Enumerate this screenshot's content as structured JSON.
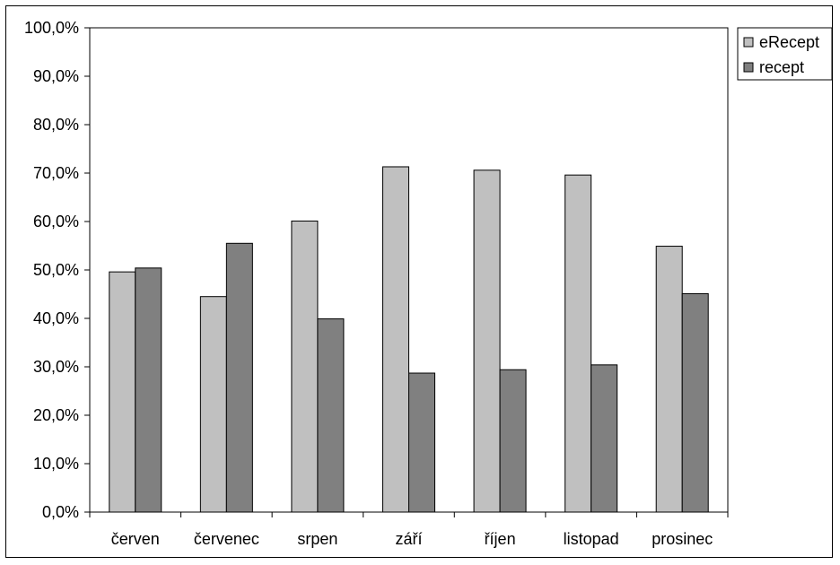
{
  "chart_data": {
    "type": "bar",
    "categories": [
      "červen",
      "červenec",
      "srpen",
      "září",
      "říjen",
      "listopad",
      "prosinec"
    ],
    "series": [
      {
        "name": "eRecept",
        "color": "#c0c0c0",
        "values": [
          49.6,
          44.5,
          60.1,
          71.3,
          70.6,
          69.6,
          54.9
        ]
      },
      {
        "name": "recept",
        "color": "#808080",
        "values": [
          50.4,
          55.5,
          39.9,
          28.7,
          29.4,
          30.4,
          45.1
        ]
      }
    ],
    "ylim": [
      0,
      100
    ],
    "yticks": [
      "0,0%",
      "10,0%",
      "20,0%",
      "30,0%",
      "40,0%",
      "50,0%",
      "60,0%",
      "70,0%",
      "80,0%",
      "90,0%",
      "100,0%"
    ],
    "grid": false,
    "legend": "top-right",
    "title": "",
    "xlabel": "",
    "ylabel": ""
  }
}
